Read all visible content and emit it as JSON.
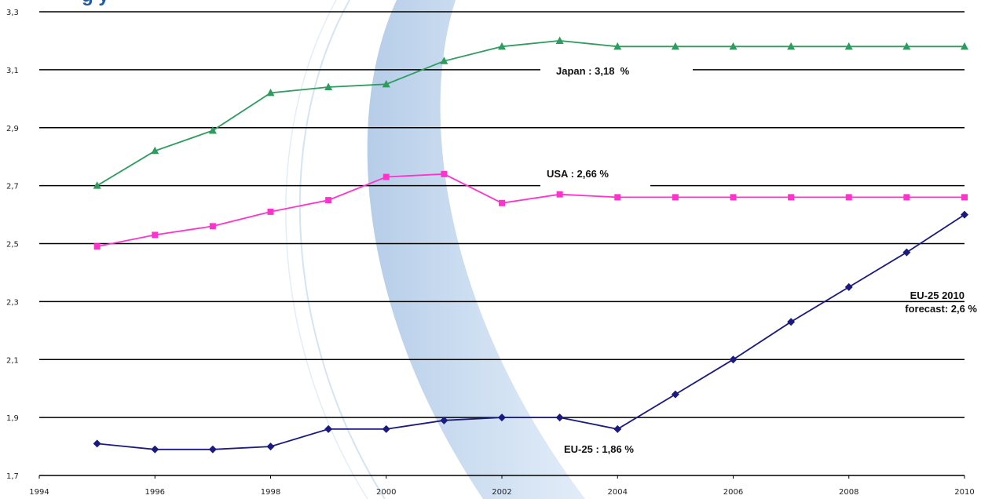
{
  "header": {
    "title_fragment": "g y"
  },
  "chart_data": {
    "type": "line",
    "x": [
      1995,
      1996,
      1997,
      1998,
      1999,
      2000,
      2001,
      2002,
      2003,
      2004,
      2005,
      2006,
      2007,
      2008,
      2009,
      2010
    ],
    "series": [
      {
        "name": "Japan",
        "color": "#2e9b5f",
        "marker": "triangle",
        "values": [
          2.7,
          2.82,
          2.89,
          3.02,
          3.04,
          3.05,
          3.13,
          3.18,
          3.2,
          3.18,
          3.18,
          3.18,
          3.18,
          3.18,
          3.18,
          3.18
        ]
      },
      {
        "name": "USA",
        "color": "#ff33cc",
        "marker": "square",
        "values": [
          2.49,
          2.53,
          2.56,
          2.61,
          2.65,
          2.73,
          2.74,
          2.64,
          2.67,
          2.66,
          2.66,
          2.66,
          2.66,
          2.66,
          2.66,
          2.66
        ]
      },
      {
        "name": "EU-25",
        "color": "#1a1a80",
        "marker": "diamond",
        "values": [
          1.81,
          1.79,
          1.79,
          1.8,
          1.86,
          1.86,
          1.89,
          1.9,
          1.9,
          1.86,
          1.98,
          2.1,
          2.23,
          2.35,
          2.47,
          2.6
        ]
      }
    ],
    "xlim": [
      1994,
      2010
    ],
    "ylim": [
      1.7,
      3.3
    ],
    "x_ticks": [
      "1994",
      "1996",
      "1998",
      "2000",
      "2002",
      "2004",
      "2006",
      "2008",
      "2010"
    ],
    "y_ticks": [
      "1,7",
      "1,9",
      "2,1",
      "2,3",
      "2,5",
      "2,7",
      "2,9",
      "3,1",
      "3,3"
    ],
    "grid": "horizontal",
    "annotations": {
      "japan": "Japan : 3,18  %",
      "usa": "USA : 2,66 %",
      "eu": "EU-25 : 1,86 %",
      "forecast_line1": "EU-25 2010",
      "forecast_line2": "forecast: 2,6 %"
    }
  }
}
